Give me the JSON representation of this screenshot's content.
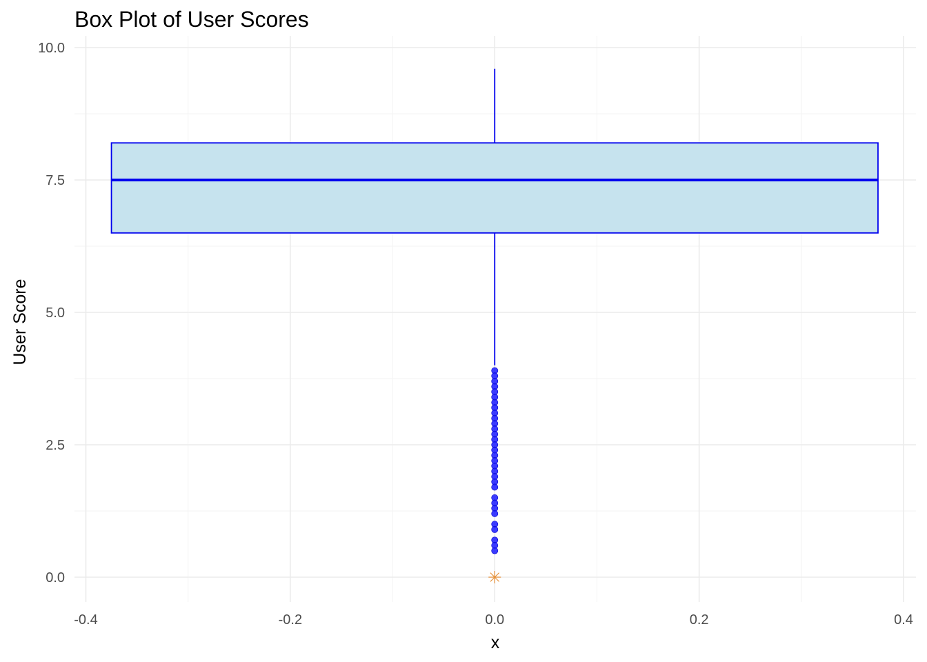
{
  "chart_data": {
    "type": "box",
    "title": "Box Plot of User Scores",
    "xlabel": "x",
    "ylabel": "User Score",
    "xlim": [
      -0.4,
      0.4
    ],
    "ylim": [
      0,
      10
    ],
    "x_ticks": [
      -0.4,
      -0.2,
      0.0,
      0.2,
      0.4
    ],
    "x_tick_labels": [
      "-0.4",
      "-0.2",
      "0.0",
      "0.2",
      "0.4"
    ],
    "y_ticks": [
      0,
      2.5,
      5,
      7.5,
      10
    ],
    "y_tick_labels": [
      "0.0",
      "2.5",
      "5.0",
      "7.5",
      "10.0"
    ],
    "grid": true,
    "box": {
      "x": 0,
      "x_min": -0.375,
      "x_max": 0.375,
      "q1": 6.5,
      "median": 7.5,
      "q3": 8.2,
      "whisker_low": 4.0,
      "whisker_high": 9.6,
      "fill": "#c6e3ee",
      "stroke": "#0000ee"
    },
    "outliers": {
      "x": 0,
      "values": [
        3.9,
        3.8,
        3.7,
        3.6,
        3.5,
        3.4,
        3.3,
        3.2,
        3.1,
        3.0,
        2.9,
        2.8,
        2.7,
        2.6,
        2.5,
        2.4,
        2.3,
        2.2,
        2.1,
        2.0,
        1.9,
        1.8,
        1.7,
        1.5,
        1.4,
        1.3,
        1.2,
        1.0,
        0.9,
        0.7,
        0.6,
        0.5
      ],
      "color": "#1a1aff"
    },
    "mean_marker": {
      "x": 0,
      "value": 0,
      "shape": "asterisk",
      "color": "#e69138"
    }
  }
}
